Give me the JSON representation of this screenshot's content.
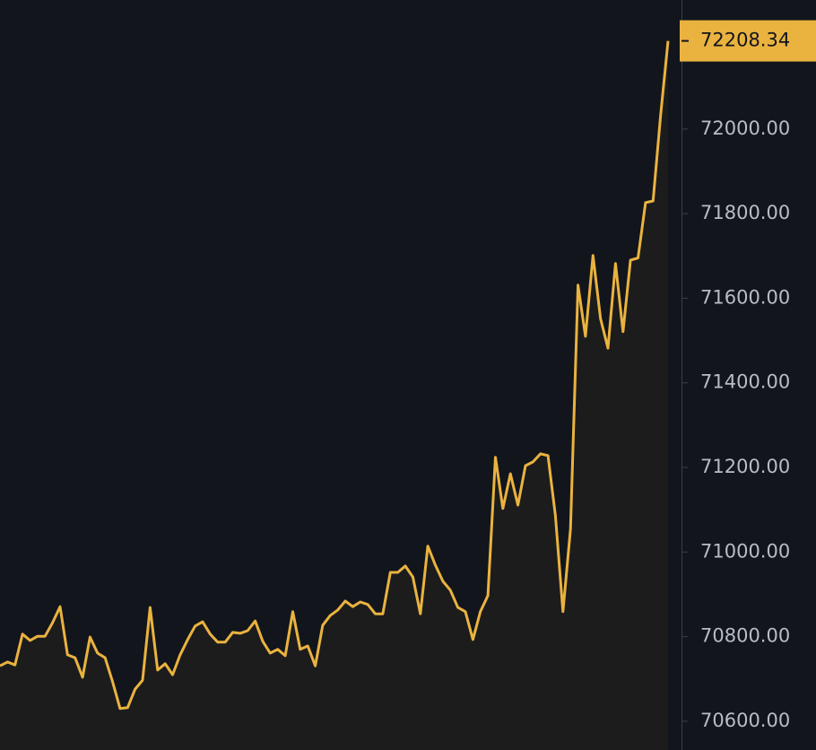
{
  "chart_data": {
    "type": "line",
    "color": "#eab33f",
    "area_color": "#1c1c1d",
    "values": [
      70731,
      70740,
      70733,
      70806,
      70791,
      70801,
      70801,
      70833,
      70871,
      70757,
      70750,
      70704,
      70799,
      70761,
      70750,
      70693,
      70630,
      70632,
      70676,
      70697,
      70869,
      70721,
      70736,
      70710,
      70757,
      70793,
      70825,
      70835,
      70806,
      70787,
      70787,
      70810,
      70808,
      70814,
      70837,
      70789,
      70761,
      70770,
      70755,
      70859,
      70770,
      70778,
      70731,
      70827,
      70850,
      70863,
      70884,
      70871,
      70882,
      70876,
      70854,
      70854,
      70952,
      70952,
      70967,
      70941,
      70854,
      71014,
      70969,
      70931,
      70910,
      70869,
      70859,
      70793,
      70859,
      70897,
      71224,
      71103,
      71185,
      71111,
      71204,
      71213,
      71232,
      71228,
      71086,
      70859,
      71054,
      71631,
      71510,
      71701,
      71552,
      71482,
      71682,
      71521,
      71690,
      71695,
      71826,
      71830,
      72030,
      72208.34
    ],
    "ylim": [
      70532,
      72305
    ],
    "yticks": [
      {
        "value": 70600,
        "label": "70600.00"
      },
      {
        "value": 70800,
        "label": "70800.00"
      },
      {
        "value": 71000,
        "label": "71000.00"
      },
      {
        "value": 71200,
        "label": "71200.00"
      },
      {
        "value": 71400,
        "label": "71400.00"
      },
      {
        "value": 71600,
        "label": "71600.00"
      },
      {
        "value": 71800,
        "label": "71800.00"
      },
      {
        "value": 72000,
        "label": "72000.00"
      }
    ],
    "price_tag_color": "#eab33f"
  }
}
